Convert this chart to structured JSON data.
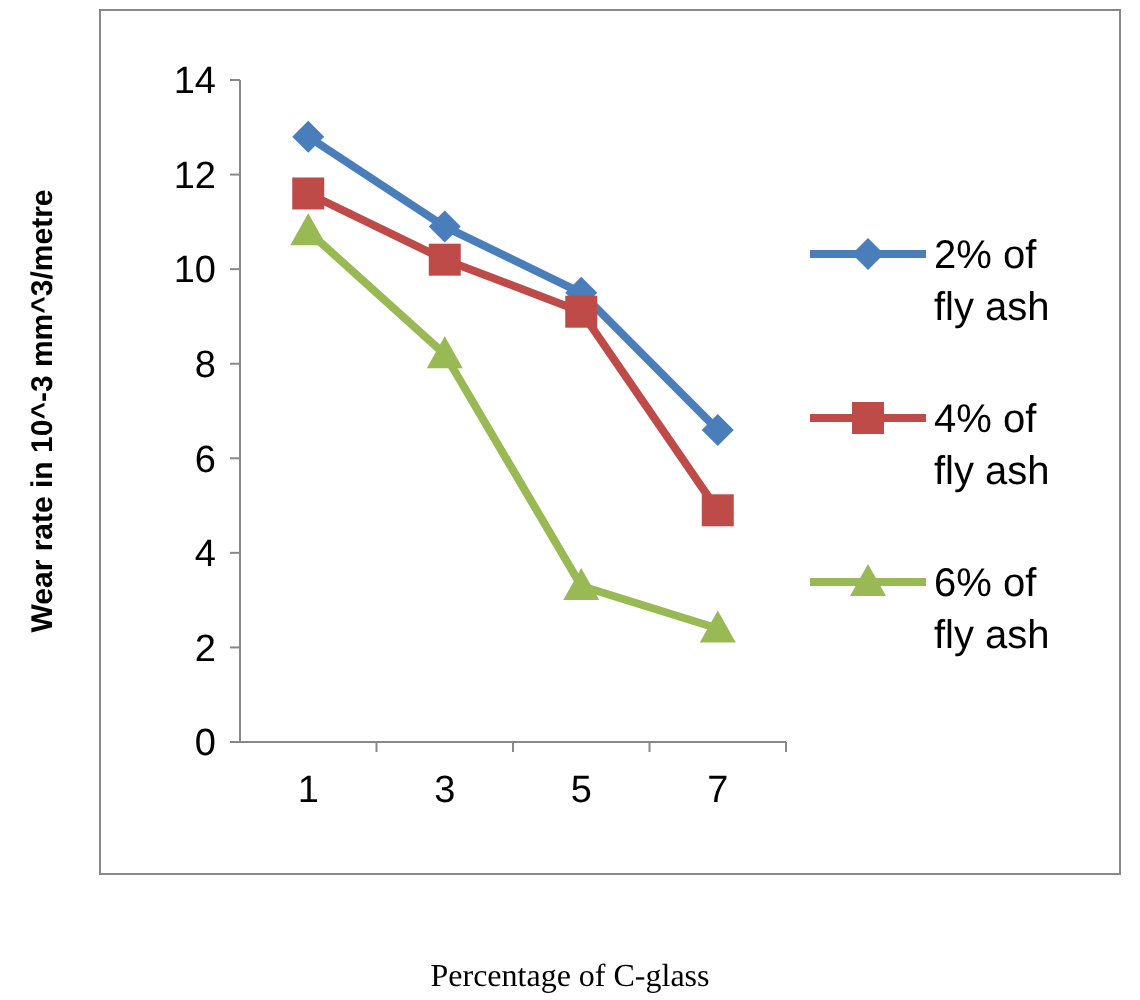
{
  "chart_data": {
    "type": "line",
    "xlabel": "Percentage of C-glass",
    "ylabel": "Wear rate  in 10^-3 mm^3/metre",
    "categories": [
      "1",
      "3",
      "5",
      "7"
    ],
    "ylim": [
      0,
      14
    ],
    "yticks": [
      0,
      2,
      4,
      6,
      8,
      10,
      12,
      14
    ],
    "grid": false,
    "legend": "right",
    "line_style": "solid",
    "series": [
      {
        "name": "2% of fly ash",
        "color": "#4a7ebb",
        "marker": "diamond",
        "values": [
          12.8,
          10.9,
          9.5,
          6.6
        ]
      },
      {
        "name": "4% of fly ash",
        "color": "#be4b48",
        "marker": "square",
        "values": [
          11.6,
          10.2,
          9.1,
          4.9
        ]
      },
      {
        "name": "6% of fly ash",
        "color": "#98b954",
        "marker": "triangle",
        "values": [
          10.8,
          8.2,
          3.3,
          2.4
        ]
      }
    ]
  }
}
